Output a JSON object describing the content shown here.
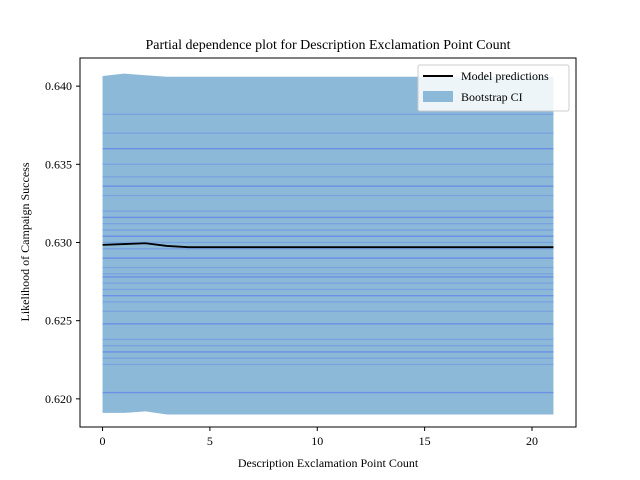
{
  "chart_data": {
    "type": "line",
    "title": "Partial dependence plot for Description Exclamation Point Count",
    "xlabel": "Description Exclamation Point Count",
    "ylabel": "Likelihood of Campaign Success",
    "xlim": [
      -1.05,
      22.05
    ],
    "ylim": [
      0.6182,
      0.6418
    ],
    "xticks": [
      0,
      5,
      10,
      15,
      20
    ],
    "xtick_labels": [
      "0",
      "5",
      "10",
      "15",
      "20"
    ],
    "yticks": [
      0.62,
      0.625,
      0.63,
      0.635,
      0.64
    ],
    "ytick_labels": [
      "0.620",
      "0.625",
      "0.630",
      "0.635",
      "0.640"
    ],
    "legend": {
      "placement": "top-right",
      "entries": [
        "Model predictions",
        "Bootstrap CI"
      ]
    },
    "colors": {
      "model_line": "#000000",
      "ci_fill": "#8cb9d8",
      "bootstrap_lines": "#4f6ff0"
    },
    "series": [
      {
        "name": "Model predictions",
        "x": [
          0,
          1,
          2,
          3,
          4,
          5,
          10,
          15,
          20,
          21
        ],
        "y": [
          0.62985,
          0.6299,
          0.62995,
          0.62978,
          0.6297,
          0.6297,
          0.6297,
          0.6297,
          0.6297,
          0.6297
        ]
      },
      {
        "name": "Bootstrap CI",
        "x": [
          0,
          1,
          2,
          3,
          4,
          5,
          10,
          15,
          20,
          21
        ],
        "lower": [
          0.6191,
          0.6191,
          0.6192,
          0.619,
          0.619,
          0.619,
          0.619,
          0.619,
          0.619,
          0.619
        ],
        "upper": [
          0.64065,
          0.6408,
          0.6407,
          0.6406,
          0.6406,
          0.6406,
          0.6406,
          0.6406,
          0.6406,
          0.6406
        ]
      }
    ],
    "bootstrap_levels": [
      0.6204,
      0.6222,
      0.6226,
      0.623,
      0.6234,
      0.6238,
      0.6248,
      0.6256,
      0.6262,
      0.6266,
      0.627,
      0.6274,
      0.6278,
      0.628,
      0.6284,
      0.629,
      0.6296,
      0.63,
      0.6304,
      0.6308,
      0.6312,
      0.6316,
      0.632,
      0.633,
      0.6336,
      0.6342,
      0.635,
      0.636,
      0.637,
      0.6382
    ]
  }
}
